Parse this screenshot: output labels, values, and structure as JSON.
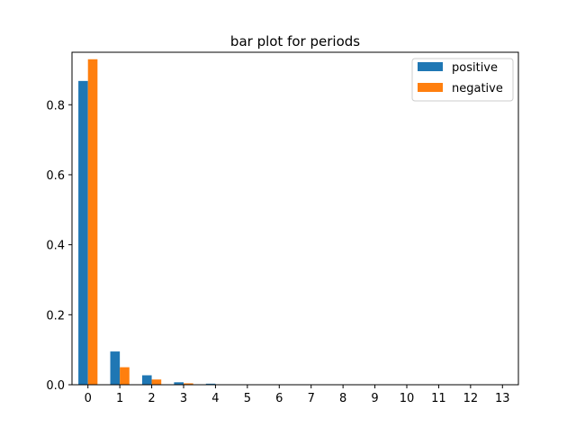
{
  "chart_data": {
    "type": "bar",
    "title": "bar plot for periods",
    "xlabel": "",
    "ylabel": "",
    "categories": [
      "0",
      "1",
      "2",
      "3",
      "4",
      "5",
      "6",
      "7",
      "8",
      "9",
      "10",
      "11",
      "12",
      "13"
    ],
    "series": [
      {
        "name": "positive",
        "color": "#1f77b4",
        "values": [
          0.868,
          0.095,
          0.027,
          0.007,
          0.003,
          0.0,
          0.0,
          0.0,
          0.0,
          0.0,
          0.0,
          0.0,
          0.0,
          0.0
        ]
      },
      {
        "name": "negative",
        "color": "#ff7f0e",
        "values": [
          0.93,
          0.05,
          0.015,
          0.004,
          0.001,
          0.0,
          0.0,
          0.0,
          0.0,
          0.0,
          0.0,
          0.0,
          0.0,
          0.0
        ]
      }
    ],
    "ylim": [
      0,
      0.95
    ],
    "yticks": [
      0.0,
      0.2,
      0.4,
      0.6,
      0.8
    ],
    "ytick_labels": [
      "0.0",
      "0.2",
      "0.4",
      "0.6",
      "0.8"
    ],
    "grid": false,
    "legend_position": "top-right"
  }
}
